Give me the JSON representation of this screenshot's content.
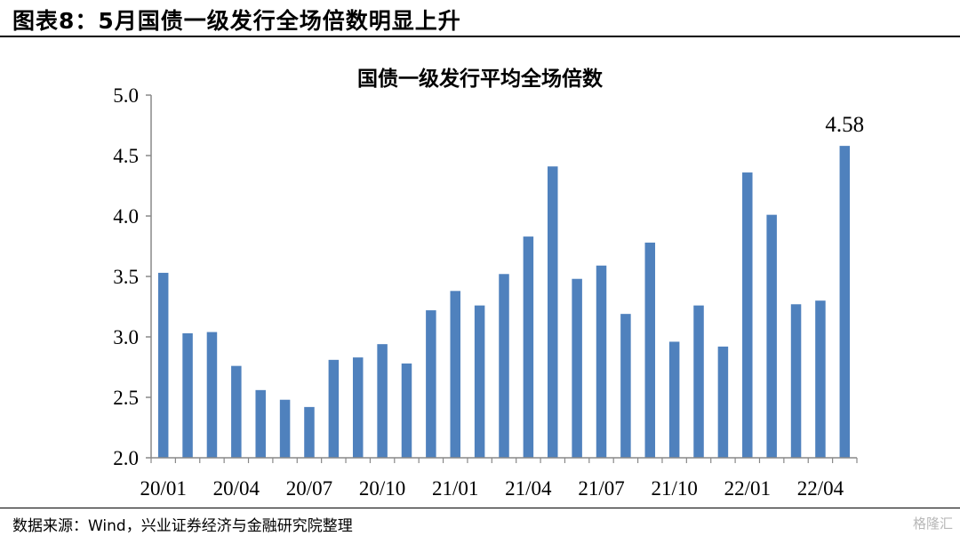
{
  "figure": {
    "header": "图表8：5月国债一级发行全场倍数明显上升",
    "source": "数据来源：Wind，兴业证券经济与金融研究院整理",
    "watermark": "格隆汇"
  },
  "chart_data": {
    "type": "bar",
    "title": "国债一级发行平均全场倍数",
    "xlabel": "",
    "ylabel": "",
    "ylim": [
      2.0,
      5.0
    ],
    "y_ticks": [
      "2.0",
      "2.5",
      "3.0",
      "3.5",
      "4.0",
      "4.5",
      "5.0"
    ],
    "x_tick_labels": [
      "20/01",
      "20/04",
      "20/07",
      "20/10",
      "21/01",
      "21/04",
      "21/07",
      "21/10",
      "22/01",
      "22/04"
    ],
    "categories": [
      "20/01",
      "20/02",
      "20/03",
      "20/04",
      "20/05",
      "20/06",
      "20/07",
      "20/08",
      "20/09",
      "20/10",
      "20/11",
      "20/12",
      "21/01",
      "21/02",
      "21/03",
      "21/04",
      "21/05",
      "21/06",
      "21/07",
      "21/08",
      "21/09",
      "21/10",
      "21/11",
      "21/12",
      "22/01",
      "22/02",
      "22/03",
      "22/04",
      "22/05"
    ],
    "values": [
      3.53,
      3.03,
      3.04,
      2.76,
      2.56,
      2.48,
      2.42,
      2.81,
      2.83,
      2.94,
      2.78,
      3.22,
      3.38,
      3.26,
      3.52,
      3.83,
      4.41,
      3.48,
      3.59,
      3.19,
      3.78,
      2.96,
      3.26,
      2.92,
      4.36,
      4.01,
      3.27,
      3.3,
      4.58
    ],
    "data_labels": [
      {
        "index": 28,
        "text": "4.58"
      }
    ],
    "bar_color": "#4F81BD",
    "grid": false
  }
}
